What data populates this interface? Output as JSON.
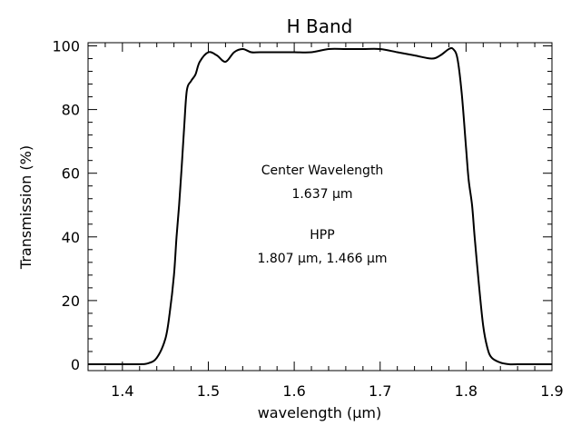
{
  "chart_data": {
    "type": "line",
    "title": "H Band",
    "xlabel": "wavelength (μm)",
    "ylabel": "Transmission (%)",
    "xlim": [
      1.36,
      1.9
    ],
    "ylim": [
      -2,
      101
    ],
    "x_ticks": [
      1.4,
      1.5,
      1.6,
      1.7,
      1.8,
      1.9
    ],
    "x_tick_labels": [
      "1.4",
      "1.5",
      "1.6",
      "1.7",
      "1.8",
      "1.9"
    ],
    "y_ticks": [
      0,
      20,
      40,
      60,
      80,
      100
    ],
    "y_tick_labels": [
      "0",
      "20",
      "40",
      "60",
      "80",
      "100"
    ],
    "grid": false,
    "series": [
      {
        "x": [
          1.36,
          1.4,
          1.42,
          1.43,
          1.44,
          1.45,
          1.455,
          1.46,
          1.463,
          1.466,
          1.469,
          1.472,
          1.475,
          1.48,
          1.485,
          1.49,
          1.5,
          1.51,
          1.52,
          1.53,
          1.54,
          1.55,
          1.56,
          1.58,
          1.6,
          1.62,
          1.64,
          1.66,
          1.68,
          1.7,
          1.72,
          1.74,
          1.76,
          1.77,
          1.78,
          1.785,
          1.79,
          1.795,
          1.8,
          1.803,
          1.807,
          1.81,
          1.815,
          1.82,
          1.825,
          1.83,
          1.84,
          1.85,
          1.86,
          1.9
        ],
        "y": [
          0,
          0,
          0,
          0.3,
          2,
          8,
          16,
          28,
          40,
          50,
          62,
          75,
          86,
          89,
          91,
          95,
          98,
          97,
          95,
          98,
          99,
          98,
          98,
          98,
          98,
          98,
          99,
          99,
          99,
          99,
          98,
          97,
          96,
          97,
          99,
          99,
          96,
          85,
          68,
          58,
          50,
          40,
          25,
          12,
          5,
          2,
          0.5,
          0,
          0,
          0
        ]
      }
    ],
    "annotations": [
      {
        "line1": "Center Wavelength",
        "line2": "1.637 μm"
      },
      {
        "line1": "HPP",
        "line2": "1.807 μm, 1.466 μm"
      }
    ]
  }
}
